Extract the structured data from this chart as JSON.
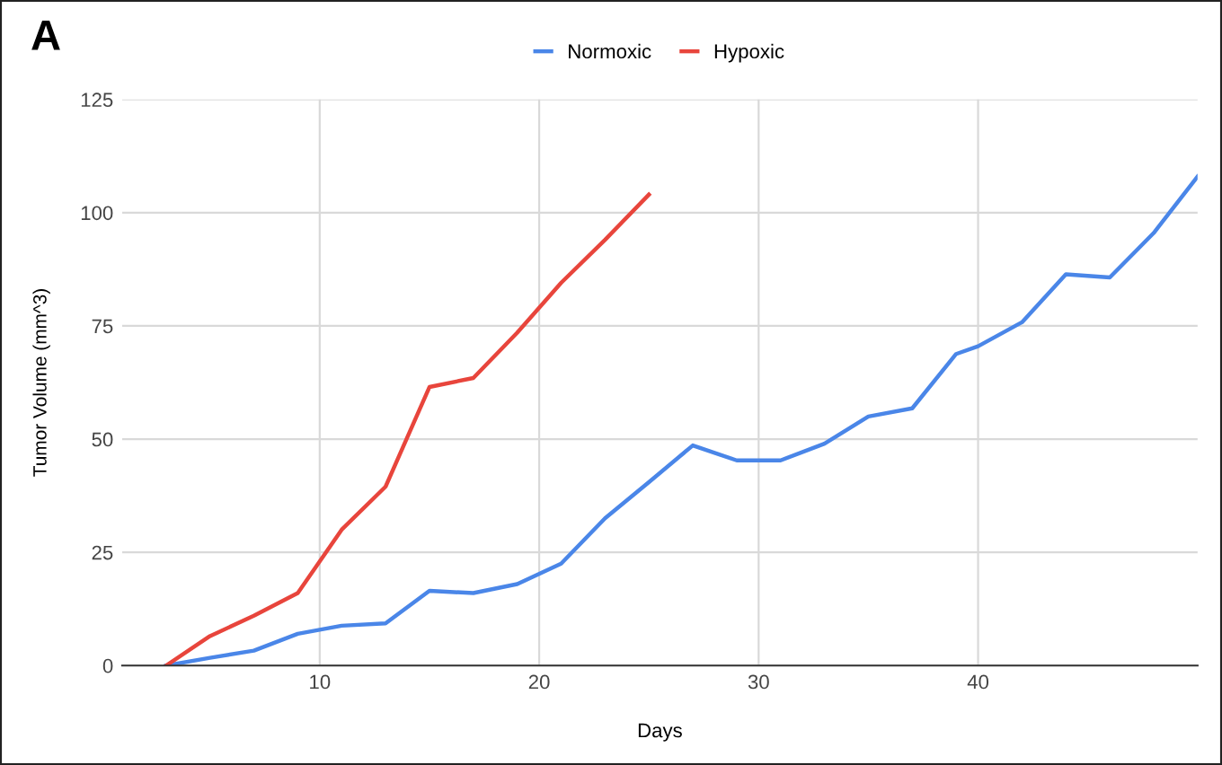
{
  "chart_data": {
    "type": "line",
    "title": "A",
    "xlabel": "Days",
    "ylabel": "Tumor Volume (mm^3)",
    "xlim": [
      1,
      50
    ],
    "xticks": [
      10,
      20,
      30,
      40
    ],
    "ylim": [
      0,
      125
    ],
    "yticks": [
      0,
      25,
      50,
      75,
      100,
      125
    ],
    "grid": true,
    "legend": "top",
    "line_style": "solid",
    "marker": "none",
    "series": [
      {
        "name": "Normoxic",
        "color": "#4a86e8",
        "x": [
          3,
          5,
          7,
          9,
          11,
          13,
          15,
          17,
          19,
          21,
          23,
          25,
          27,
          29,
          31,
          33,
          35,
          37,
          39,
          40,
          42,
          44,
          46,
          48,
          50
        ],
        "values": [
          0,
          1.7,
          3.3,
          7,
          8.8,
          9.3,
          16.5,
          16,
          18,
          22.5,
          32.5,
          40.5,
          48.6,
          45.3,
          45.3,
          49,
          55,
          56.8,
          68.8,
          70.5,
          75.8,
          86.4,
          85.7,
          95.5,
          108
        ]
      },
      {
        "name": "Hypoxic",
        "color": "#e8453c",
        "x": [
          3,
          5,
          7,
          9,
          11,
          13,
          15,
          17,
          19,
          21,
          23,
          25
        ],
        "values": [
          0,
          6.5,
          11,
          16,
          30,
          39.5,
          61.5,
          63.5,
          73.5,
          84.5,
          94,
          104
        ]
      }
    ]
  }
}
